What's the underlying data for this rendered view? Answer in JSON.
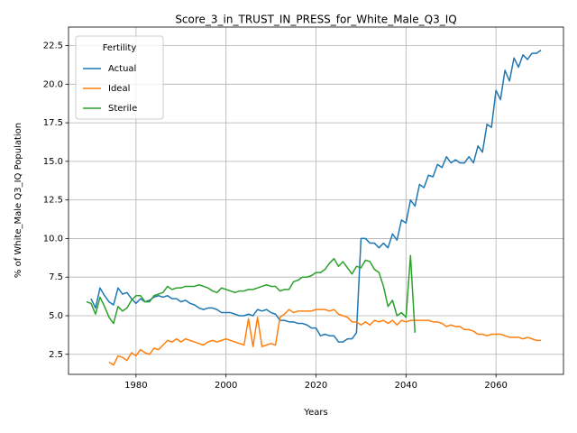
{
  "chart_data": {
    "type": "line",
    "title": "Score_3_in_TRUST_IN_PRESS_for_White_Male_Q3_IQ",
    "x_label": "Years",
    "y_label": "% of White_Male Q3_IQ Population",
    "legend_title": "Fertility",
    "legend": "upper left",
    "grid": true,
    "xlim": [
      1965,
      2075
    ],
    "xticks": [
      1980,
      2000,
      2020,
      2040,
      2060
    ],
    "ylim": [
      1.2,
      23.7
    ],
    "yticks": [
      2.5,
      {
        "value": 5,
        "label": "5.0"
      },
      7.5,
      {
        "value": 10,
        "label": "10.0"
      },
      12.5,
      {
        "value": 15,
        "label": "15.0"
      },
      17.5,
      {
        "value": 20,
        "label": "20.0"
      },
      22.5
    ],
    "x": [
      1969,
      1970,
      1971,
      1972,
      1973,
      1974,
      1975,
      1976,
      1977,
      1978,
      1979,
      1980,
      1981,
      1982,
      1983,
      1984,
      1985,
      1986,
      1987,
      1988,
      1989,
      1990,
      1991,
      1992,
      1993,
      1994,
      1995,
      1996,
      1997,
      1998,
      1999,
      2000,
      2001,
      2002,
      2003,
      2004,
      2005,
      2006,
      2007,
      2008,
      2009,
      2010,
      2011,
      2012,
      2013,
      2014,
      2015,
      2016,
      2017,
      2018,
      2019,
      2020,
      2021,
      2022,
      2023,
      2024,
      2025,
      2026,
      2027,
      2028,
      2029,
      2030,
      2031,
      2032,
      2033,
      2034,
      2035,
      2036,
      2037,
      2038,
      2039,
      2040,
      2041,
      2042,
      2043,
      2044,
      2045,
      2046,
      2047,
      2048,
      2049,
      2050,
      2051,
      2052,
      2053,
      2054,
      2055,
      2056,
      2057,
      2058,
      2059,
      2060,
      2061,
      2062,
      2063,
      2064,
      2065,
      2066,
      2067,
      2068,
      2069,
      2070
    ],
    "series": [
      {
        "name": "Actual",
        "color": "#1f77b4",
        "values": [
          null,
          6.1,
          5.5,
          6.8,
          6.3,
          5.9,
          5.7,
          6.8,
          6.4,
          6.5,
          6.1,
          5.8,
          6.1,
          5.9,
          6.0,
          6.2,
          6.3,
          6.2,
          6.3,
          6.1,
          6.1,
          5.9,
          6.0,
          5.8,
          5.7,
          5.5,
          5.4,
          5.5,
          5.5,
          5.4,
          5.2,
          5.2,
          5.2,
          5.1,
          5.0,
          5.0,
          5.1,
          5.0,
          5.4,
          5.3,
          5.4,
          5.2,
          5.1,
          4.7,
          4.7,
          4.6,
          4.6,
          4.5,
          4.5,
          4.4,
          4.2,
          4.2,
          3.7,
          3.8,
          3.7,
          3.7,
          3.3,
          3.3,
          3.5,
          3.5,
          3.9,
          10.0,
          10.0,
          9.7,
          9.7,
          9.4,
          9.7,
          9.4,
          10.3,
          9.9,
          11.2,
          11.0,
          12.5,
          12.1,
          13.5,
          13.3,
          14.1,
          14.0,
          14.8,
          14.6,
          15.3,
          14.9,
          15.1,
          14.9,
          14.9,
          15.3,
          14.9,
          16.0,
          15.6,
          17.4,
          17.2,
          19.6,
          19.0,
          20.9,
          20.2,
          21.7,
          21.1,
          21.9,
          21.6,
          22.0,
          22.0,
          22.2
        ]
      },
      {
        "name": "Ideal",
        "color": "#ff7f0e",
        "values": [
          null,
          null,
          null,
          null,
          null,
          2.0,
          1.8,
          2.4,
          2.3,
          2.1,
          2.6,
          2.4,
          2.8,
          2.6,
          2.5,
          2.9,
          2.8,
          3.1,
          3.4,
          3.3,
          3.5,
          3.3,
          3.5,
          3.4,
          3.3,
          3.2,
          3.1,
          3.3,
          3.4,
          3.3,
          3.4,
          3.5,
          3.4,
          3.3,
          3.2,
          3.1,
          4.8,
          3.0,
          4.9,
          3.0,
          3.1,
          3.2,
          3.1,
          4.9,
          5.1,
          5.4,
          5.2,
          5.3,
          5.3,
          5.3,
          5.3,
          5.4,
          5.4,
          5.4,
          5.3,
          5.4,
          5.1,
          5.0,
          4.9,
          4.6,
          4.6,
          4.4,
          4.6,
          4.4,
          4.7,
          4.6,
          4.7,
          4.5,
          4.7,
          4.4,
          4.7,
          4.6,
          4.7,
          4.7,
          4.7,
          4.7,
          4.7,
          4.6,
          4.6,
          4.5,
          4.3,
          4.4,
          4.3,
          4.3,
          4.1,
          4.1,
          4.0,
          3.8,
          3.8,
          3.7,
          3.8,
          3.8,
          3.8,
          3.7,
          3.6,
          3.6,
          3.6,
          3.5,
          3.6,
          3.5,
          3.4,
          3.4
        ]
      },
      {
        "name": "Sterile",
        "color": "#2ca02c",
        "values": [
          5.9,
          5.8,
          5.1,
          6.2,
          5.6,
          4.9,
          4.5,
          5.6,
          5.3,
          5.5,
          6.0,
          6.3,
          6.3,
          5.9,
          5.9,
          6.3,
          6.4,
          6.5,
          6.9,
          6.7,
          6.8,
          6.8,
          6.9,
          6.9,
          6.9,
          7.0,
          6.9,
          6.8,
          6.6,
          6.5,
          6.8,
          6.7,
          6.6,
          6.5,
          6.6,
          6.6,
          6.7,
          6.7,
          6.8,
          6.9,
          7.0,
          6.9,
          6.9,
          6.6,
          6.7,
          6.7,
          7.2,
          7.3,
          7.5,
          7.5,
          7.6,
          7.8,
          7.8,
          8.0,
          8.4,
          8.7,
          8.2,
          8.5,
          8.1,
          7.7,
          8.2,
          8.1,
          8.6,
          8.5,
          8.0,
          7.8,
          6.9,
          5.6,
          6.0,
          5.0,
          5.2,
          4.9,
          8.9,
          3.9,
          null,
          null,
          null,
          null,
          null,
          null,
          null,
          null,
          null,
          null,
          null,
          null,
          null,
          null,
          null,
          null,
          null,
          null,
          null,
          null,
          null,
          null,
          null,
          null,
          null,
          null,
          null,
          null
        ]
      }
    ]
  }
}
